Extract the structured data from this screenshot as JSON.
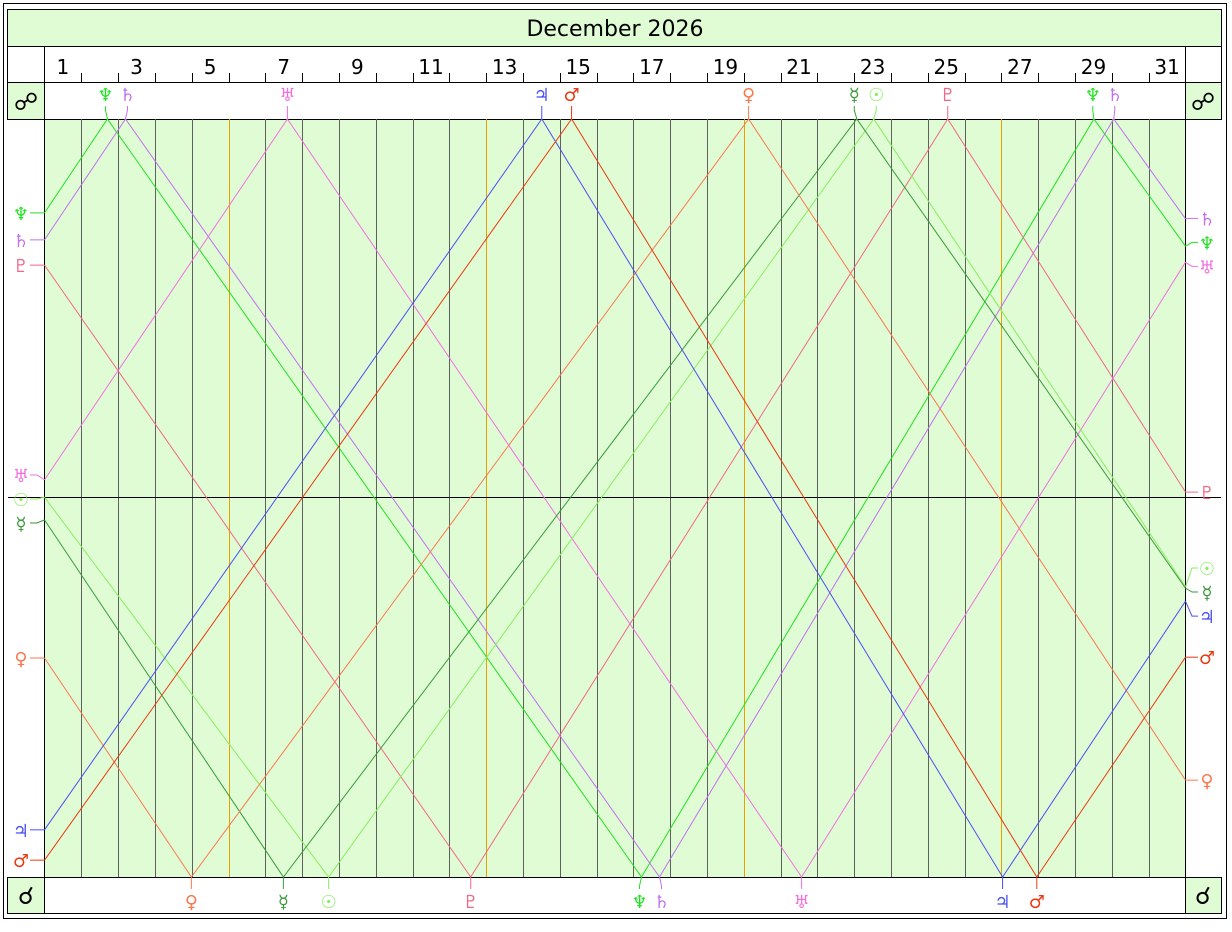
{
  "title": "December 2026",
  "opposition_symbol": "☍",
  "conjunction_symbol": "☌",
  "day_labels": [
    "1",
    "3",
    "5",
    "7",
    "9",
    "11",
    "13",
    "15",
    "17",
    "19",
    "21",
    "23",
    "25",
    "27",
    "29",
    "31"
  ],
  "colors": {
    "background": "#e0fcd4",
    "grid": "#606060",
    "sunday_grid": "#e8a000",
    "frame": "#000000"
  },
  "chart_data": {
    "type": "line",
    "title": "December 2026",
    "x_unit": "day of month",
    "xlim": [
      1,
      32
    ],
    "ylim": [
      0,
      180
    ],
    "sundays": [
      6,
      13,
      20,
      27
    ],
    "midline": 90,
    "grid": true,
    "series": [
      {
        "name": "Neptune",
        "glyph": "♆",
        "color": "#22e022",
        "points": [
          [
            1,
            157.7
          ],
          [
            2.71,
            180
          ],
          [
            17.22,
            0
          ],
          [
            29.51,
            180
          ],
          [
            32,
            149.8
          ]
        ]
      },
      {
        "name": "Saturn",
        "glyph": "♄",
        "color": "#c070f0",
        "points": [
          [
            1,
            151.3
          ],
          [
            3.2,
            180
          ],
          [
            17.71,
            0
          ],
          [
            30.05,
            180
          ],
          [
            32,
            156.3
          ]
        ]
      },
      {
        "name": "Pluto",
        "glyph": "♇",
        "color": "#f06888",
        "points": [
          [
            1,
            145.3
          ],
          [
            12.58,
            0
          ],
          [
            25.54,
            180
          ],
          [
            32,
            91.4
          ]
        ]
      },
      {
        "name": "Uranus",
        "glyph": "♅",
        "color": "#f070e0",
        "points": [
          [
            1,
            94.3
          ],
          [
            7.6,
            180
          ],
          [
            21.57,
            0
          ],
          [
            32,
            146
          ]
        ]
      },
      {
        "name": "Sun",
        "glyph": "☉",
        "color": "#88ee60",
        "points": [
          [
            1,
            90.2
          ],
          [
            8.72,
            0
          ],
          [
            23.53,
            180
          ],
          [
            32,
            68.9
          ]
        ]
      },
      {
        "name": "Mercury",
        "glyph": "☿",
        "color": "#3a9a3a",
        "points": [
          [
            1,
            84.8
          ],
          [
            7.49,
            0
          ],
          [
            23.07,
            180
          ],
          [
            32,
            68.6
          ]
        ]
      },
      {
        "name": "Venus",
        "glyph": "♀",
        "color": "#f87850",
        "points": [
          [
            1,
            52
          ],
          [
            4.99,
            0
          ],
          [
            20.13,
            180
          ],
          [
            32,
            23
          ]
        ]
      },
      {
        "name": "Jupiter",
        "glyph": "♃",
        "color": "#4a50f0",
        "points": [
          [
            1,
            11.2
          ],
          [
            14.51,
            180
          ],
          [
            27.03,
            0
          ],
          [
            32,
            65.5
          ]
        ]
      },
      {
        "name": "Mars",
        "glyph": "♂",
        "color": "#e83a10",
        "points": [
          [
            1,
            4
          ],
          [
            15.32,
            180
          ],
          [
            27.96,
            0
          ],
          [
            32,
            52.2
          ]
        ]
      }
    ]
  }
}
